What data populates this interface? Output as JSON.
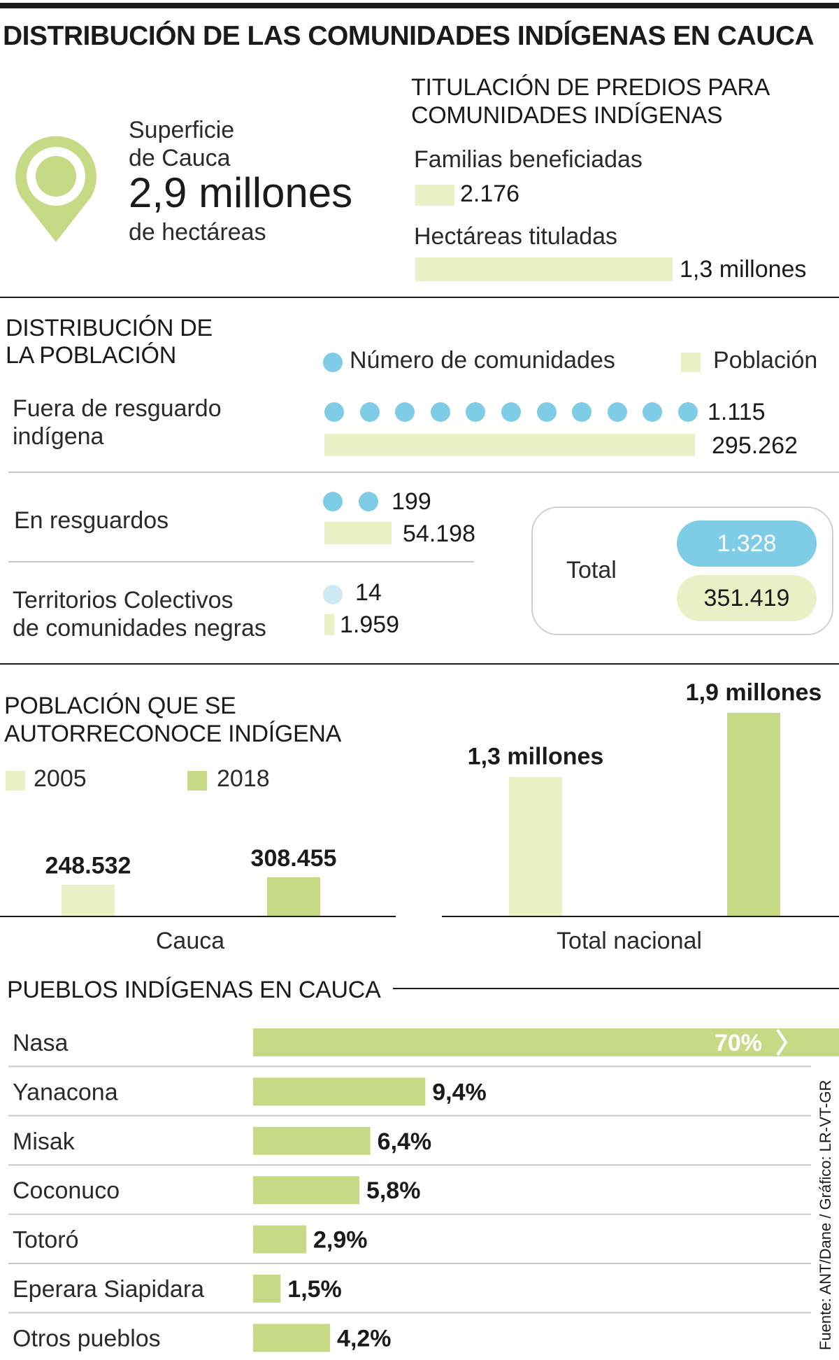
{
  "title": "DISTRIBUCIÓN DE LAS COMUNIDADES INDÍGENAS EN CAUCA",
  "colors": {
    "pale": "#ecf0c7",
    "green": "#c6da86",
    "blue": "#7fcce6",
    "light_blue": "#cde9f2"
  },
  "superficie": {
    "line1": "Superficie",
    "line2": "de Cauca",
    "value": "2,9 millones",
    "unit": "de hectáreas",
    "icon": "location-pin-icon"
  },
  "titulacion": {
    "heading_line1": "TITULACIÓN DE PREDIOS PARA",
    "heading_line2": "COMUNIDADES INDÍGENAS",
    "familias_label": "Familias beneficiadas",
    "familias_value": "2.176",
    "hectareas_label": "Hectáreas tituladas",
    "hectareas_value": "1,3 millones"
  },
  "distribucion": {
    "heading_line1": "DISTRIBUCIÓN DE",
    "heading_line2": "LA POBLACIÓN",
    "legend_comunidades": "Número de comunidades",
    "legend_poblacion": "Población",
    "rows": [
      {
        "label_line1": "Fuera de resguardo",
        "label_line2": "indígena",
        "comunidades": "1.115",
        "poblacion": "295.262",
        "dots": 11
      },
      {
        "label_line1": "En resguardos",
        "label_line2": "",
        "comunidades": "199",
        "poblacion": "54.198",
        "dots": 2
      },
      {
        "label_line1": "Territorios Colectivos",
        "label_line2": "de comunidades negras",
        "comunidades": "14",
        "poblacion": "1.959",
        "dots": 1
      }
    ],
    "total_label": "Total",
    "total_comunidades": "1.328",
    "total_poblacion": "351.419"
  },
  "autorreconoce": {
    "heading_line1": "POBLACIÓN QUE SE",
    "heading_line2": "AUTORRECONOCE INDÍGENA",
    "legend_2005": "2005",
    "legend_2018": "2018"
  },
  "chart_data": [
    {
      "type": "bar",
      "title": "POBLACIÓN QUE SE AUTORRECONOCE INDÍGENA - Cauca",
      "categories": [
        "Cauca"
      ],
      "series": [
        {
          "name": "2005",
          "values": [
            248532
          ],
          "label": "248.532"
        },
        {
          "name": "2018",
          "values": [
            308455
          ],
          "label": "308.455"
        }
      ],
      "xlabel": "Cauca"
    },
    {
      "type": "bar",
      "title": "POBLACIÓN QUE SE AUTORRECONOCE INDÍGENA - Total nacional",
      "categories": [
        "Total nacional"
      ],
      "series": [
        {
          "name": "2005",
          "values": [
            1300000
          ],
          "label": "1,3 millones"
        },
        {
          "name": "2018",
          "values": [
            1900000
          ],
          "label": "1,9 millones"
        }
      ],
      "xlabel": "Total nacional"
    },
    {
      "type": "bar",
      "title": "PUEBLOS INDÍGENAS EN CAUCA",
      "categories": [
        "Nasa",
        "Yanacona",
        "Misak",
        "Coconuco",
        "Totoró",
        "Eperara Siapidara",
        "Otros pueblos"
      ],
      "values": [
        70,
        9.4,
        6.4,
        5.8,
        2.9,
        1.5,
        4.2
      ],
      "labels": [
        "70%",
        "9,4%",
        "6,4%",
        "5,8%",
        "2,9%",
        "1,5%",
        "4,2%"
      ],
      "unit": "%"
    }
  ],
  "pueblos_heading": "PUEBLOS INDÍGENAS EN CAUCA",
  "fuente": "Fuente: ANT/Dane / Gráfico: LR-VT-GR"
}
